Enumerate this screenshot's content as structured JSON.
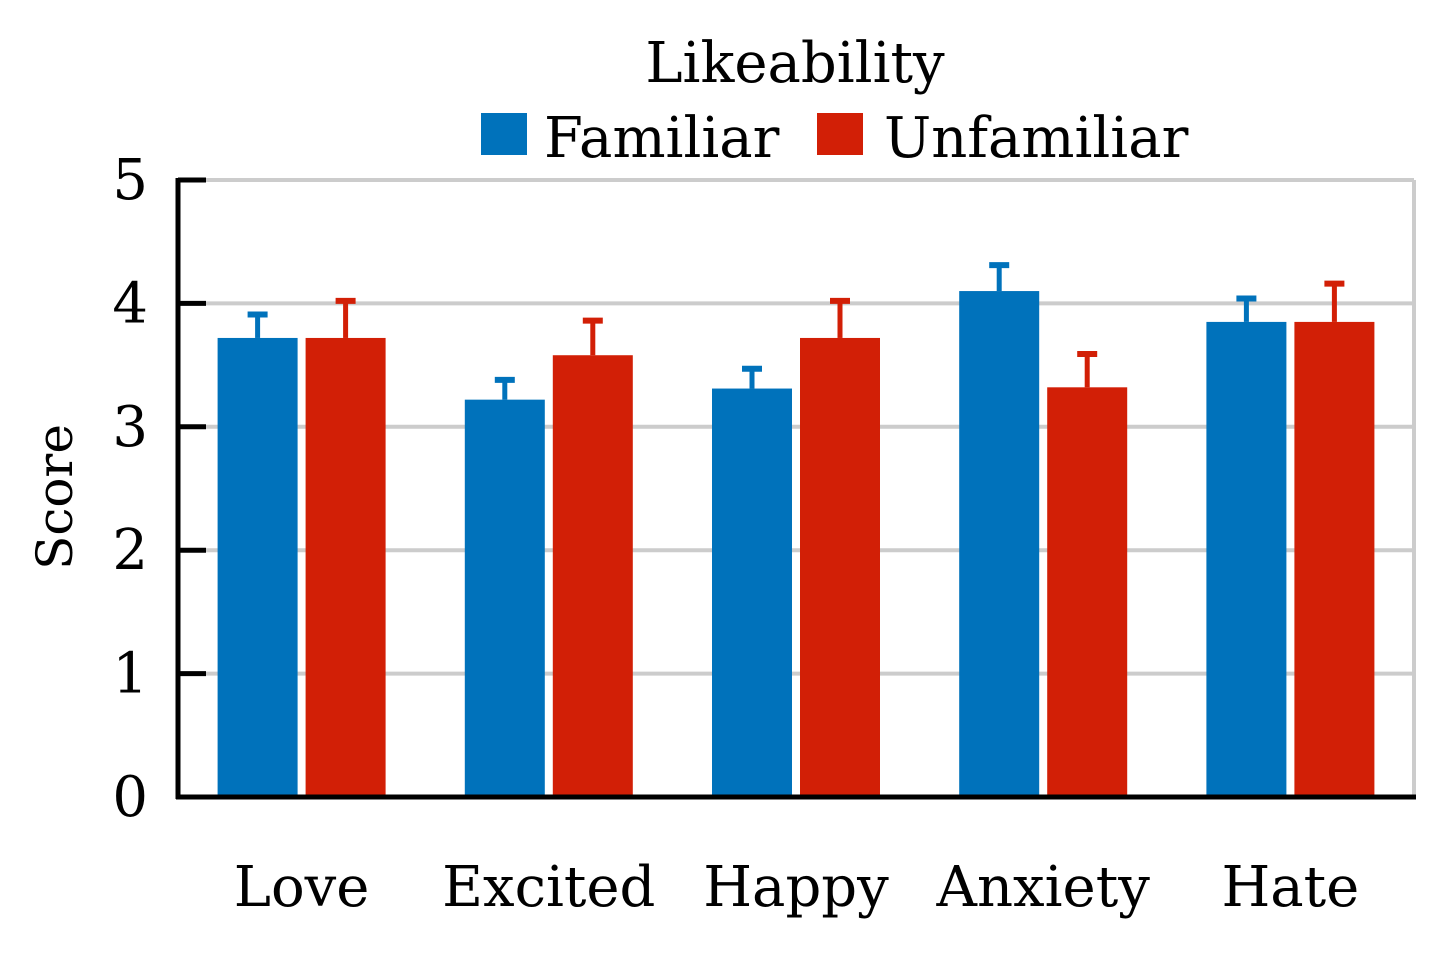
{
  "chart_data": {
    "type": "bar",
    "title": "Likeability",
    "xlabel": "",
    "ylabel": "Score",
    "ylim": [
      0,
      5
    ],
    "yticks": [
      0,
      1,
      2,
      3,
      4,
      5
    ],
    "ytick_labels": [
      "0",
      "1",
      "2",
      "3",
      "4",
      "5"
    ],
    "grid": true,
    "legend_position": "top-center",
    "categories": [
      "Love",
      "Excited",
      "Happy",
      "Anxiety",
      "Hate"
    ],
    "series": [
      {
        "name": "Familiar",
        "color": "#0072bb",
        "values": [
          3.72,
          3.22,
          3.31,
          4.1,
          3.85
        ],
        "errors": [
          0.19,
          0.16,
          0.16,
          0.21,
          0.19
        ]
      },
      {
        "name": "Unfamiliar",
        "color": "#d21f06",
        "values": [
          3.72,
          3.58,
          3.72,
          3.32,
          3.85
        ],
        "errors": [
          0.3,
          0.28,
          0.3,
          0.27,
          0.31
        ]
      }
    ]
  }
}
